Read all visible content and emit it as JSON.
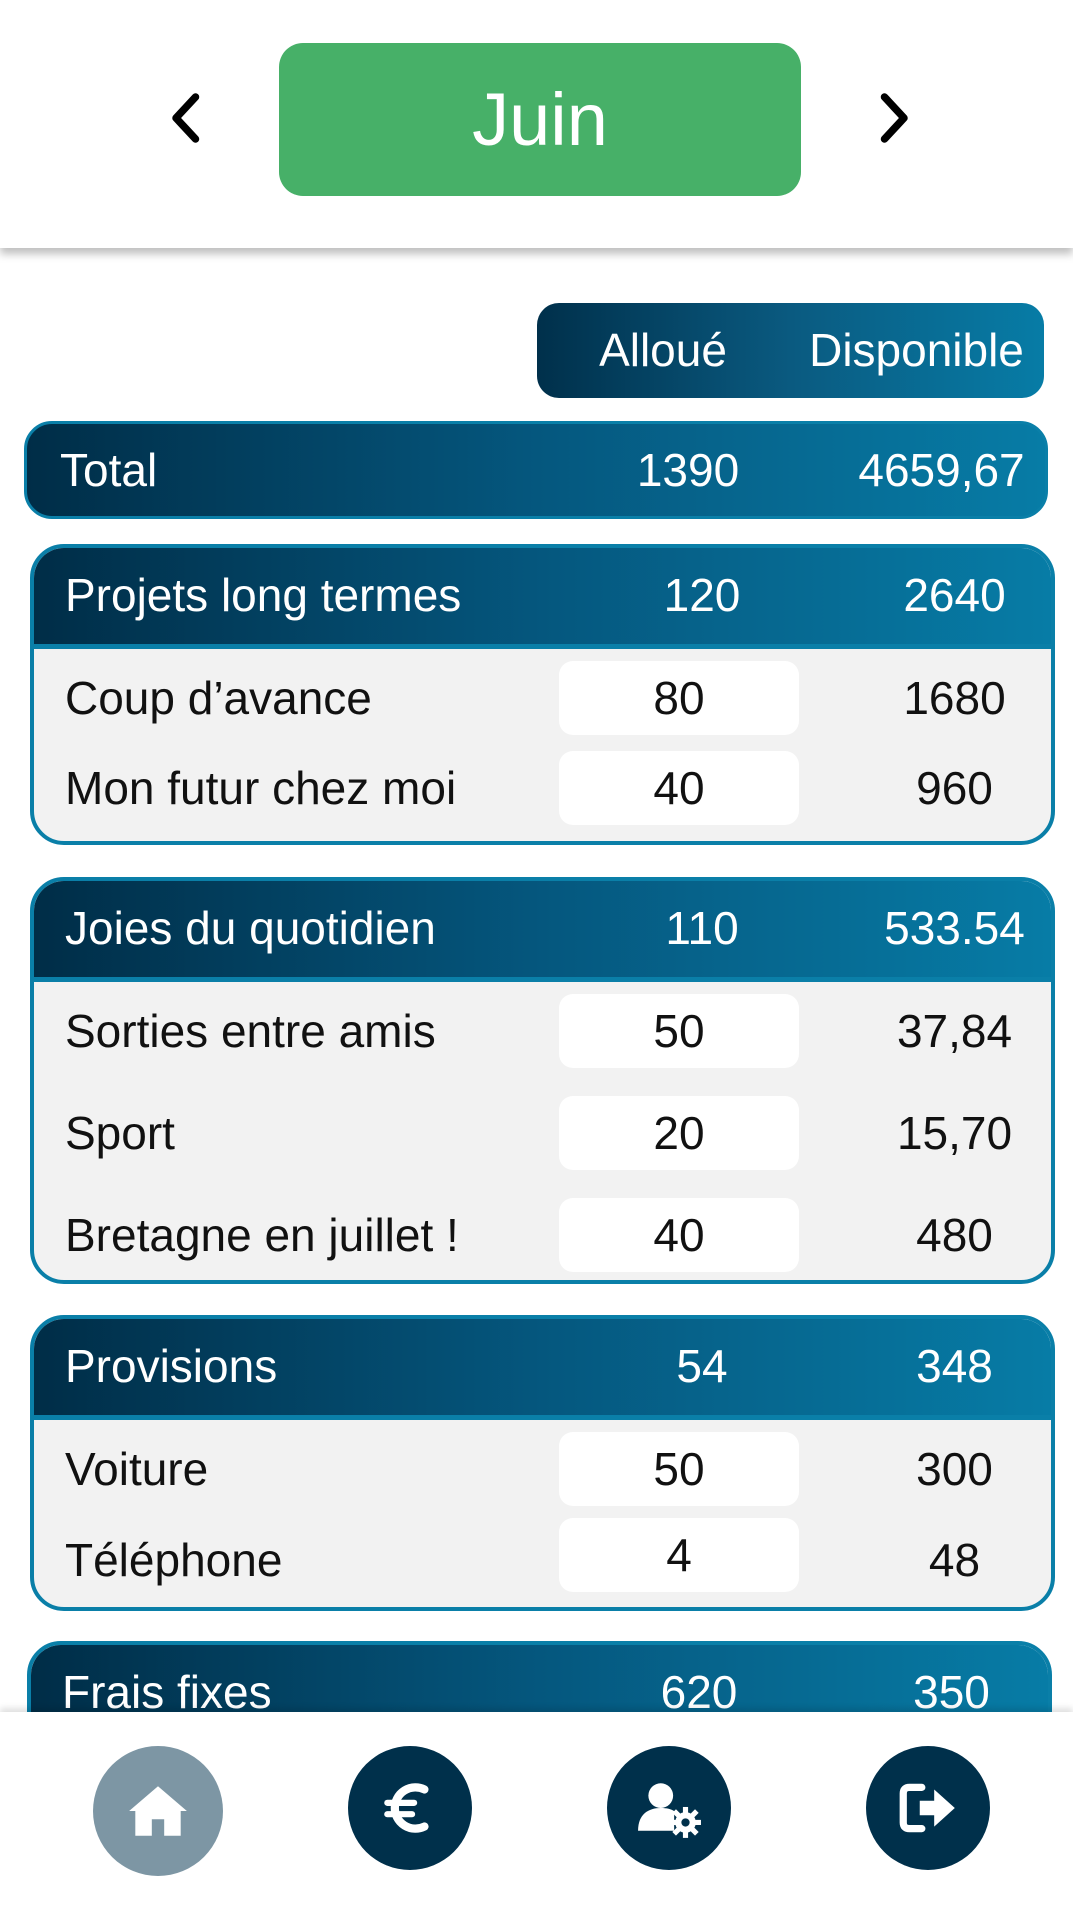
{
  "header": {
    "month": "Juin",
    "prev_icon": "chevron-left-icon",
    "next_icon": "chevron-right-icon"
  },
  "columns": {
    "allocated": "Alloué",
    "available": "Disponible"
  },
  "total": {
    "label": "Total",
    "allocated": "1390",
    "available": "4659,67"
  },
  "categories": [
    {
      "name": "Projets long termes",
      "allocated": "120",
      "available": "2640",
      "items": [
        {
          "label": "Coup d’avance",
          "allocated": "80",
          "available": "1680"
        },
        {
          "label": "Mon futur chez moi",
          "allocated": "40",
          "available": "960"
        }
      ]
    },
    {
      "name": "Joies du quotidien",
      "allocated": "110",
      "available": "533.54",
      "items": [
        {
          "label": "Sorties entre amis",
          "allocated": "50",
          "available": "37,84"
        },
        {
          "label": "Sport",
          "allocated": "20",
          "available": "15,70"
        },
        {
          "label": "Bretagne en juillet !",
          "allocated": "40",
          "available": "480"
        }
      ]
    },
    {
      "name": "Provisions",
      "allocated": "54",
      "available": "348",
      "items": [
        {
          "label": "Voiture",
          "allocated": "50",
          "available": "300"
        },
        {
          "label": "Téléphone",
          "allocated": "4",
          "available": "48"
        }
      ]
    },
    {
      "name": "Frais fixes",
      "allocated": "620",
      "available": "350",
      "items": []
    }
  ],
  "bottom_nav": [
    {
      "icon": "home-icon",
      "active": true
    },
    {
      "icon": "euro-icon",
      "active": false
    },
    {
      "icon": "user-settings-icon",
      "active": false
    },
    {
      "icon": "logout-icon",
      "active": false
    }
  ],
  "colors": {
    "accent_green": "#47b068",
    "navy": "#00304b",
    "teal": "#077ca6",
    "inactive_nav": "#7d96a4"
  }
}
